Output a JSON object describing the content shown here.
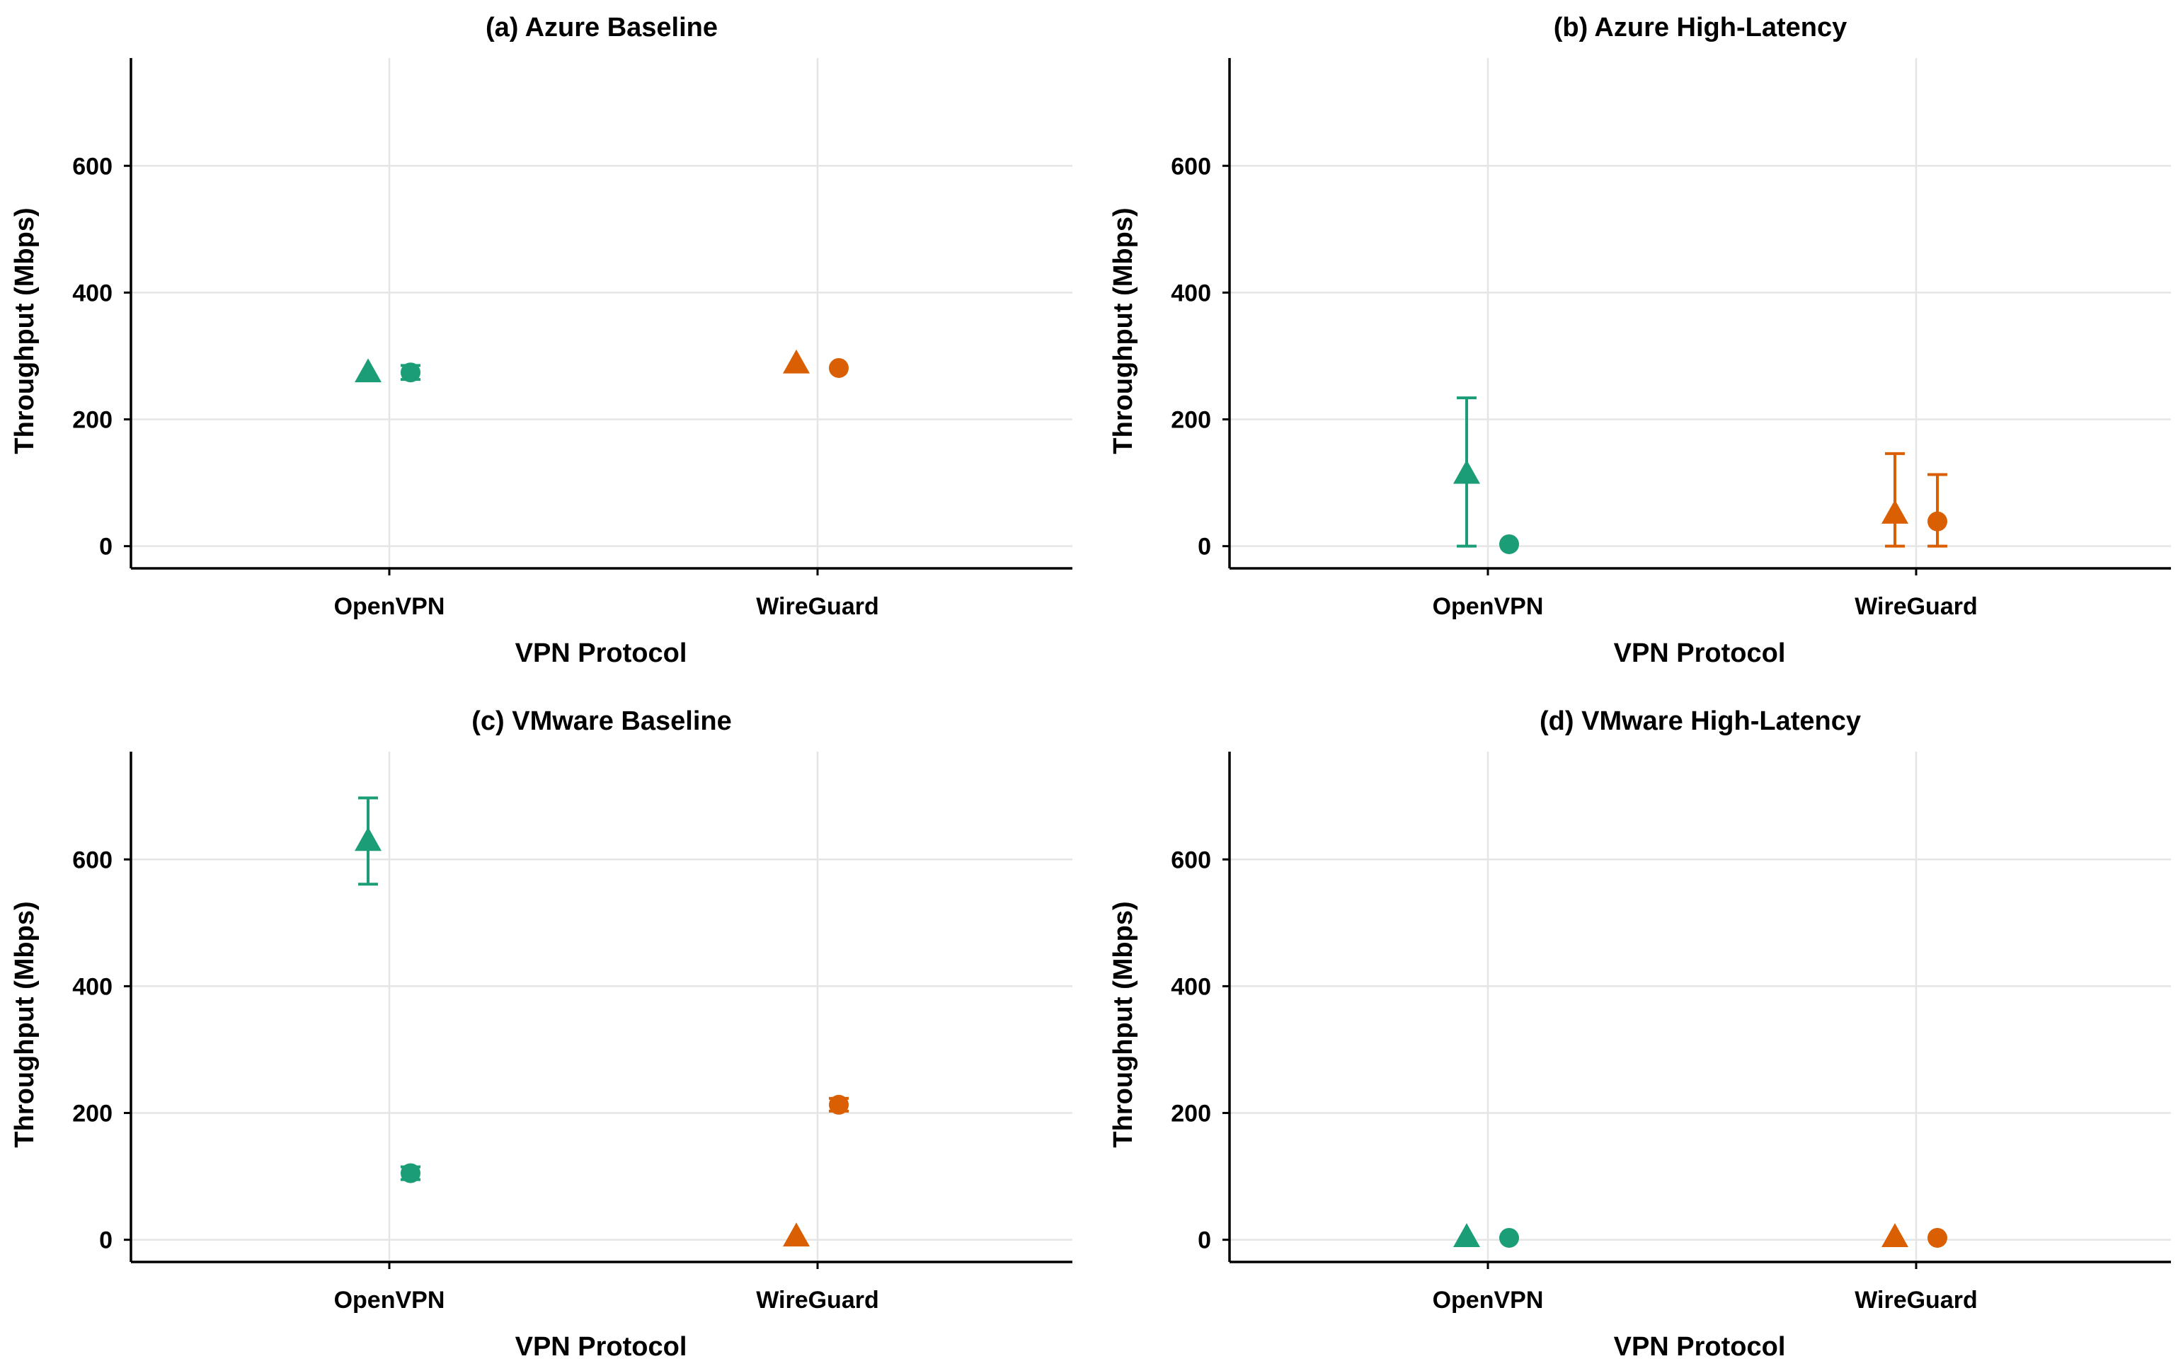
{
  "colors": {
    "openvpn": "#1b9e77",
    "wireguard": "#d95f02",
    "grid": "#e5e5e5",
    "axis": "#000000"
  },
  "chart_data": [
    {
      "type": "scatter",
      "title": "(a) Azure Baseline",
      "xlabel": "VPN Protocol",
      "ylabel": "Throughput (Mbps)",
      "categories": [
        "OpenVPN",
        "WireGuard"
      ],
      "yticks": [
        "0",
        "200",
        "400",
        "600"
      ],
      "ylim": [
        -35,
        770
      ],
      "series": [
        {
          "name": "OpenVPN triangle",
          "protocol": "OpenVPN",
          "marker": "triangle",
          "offset": -1,
          "value": 275,
          "error_low": 275,
          "error_high": 275,
          "errorbar": false
        },
        {
          "name": "OpenVPN circle",
          "protocol": "OpenVPN",
          "marker": "circle",
          "offset": 1,
          "value": 274,
          "error_low": 263,
          "error_high": 285,
          "errorbar": true
        },
        {
          "name": "WireGuard triangle",
          "protocol": "WireGuard",
          "marker": "triangle",
          "offset": -1,
          "value": 289,
          "error_low": 289,
          "error_high": 289,
          "errorbar": false
        },
        {
          "name": "WireGuard circle",
          "protocol": "WireGuard",
          "marker": "circle",
          "offset": 1,
          "value": 281,
          "error_low": 281,
          "error_high": 281,
          "errorbar": false
        }
      ]
    },
    {
      "type": "scatter",
      "title": "(b) Azure High-Latency",
      "xlabel": "VPN Protocol",
      "ylabel": "Throughput (Mbps)",
      "categories": [
        "OpenVPN",
        "WireGuard"
      ],
      "yticks": [
        "0",
        "200",
        "400",
        "600"
      ],
      "ylim": [
        -35,
        770
      ],
      "series": [
        {
          "name": "OpenVPN triangle",
          "protocol": "OpenVPN",
          "marker": "triangle",
          "offset": -1,
          "value": 115,
          "error_low": 0,
          "error_high": 234,
          "errorbar": true
        },
        {
          "name": "OpenVPN circle",
          "protocol": "OpenVPN",
          "marker": "circle",
          "offset": 1,
          "value": 3,
          "error_low": 3,
          "error_high": 3,
          "errorbar": false
        },
        {
          "name": "WireGuard triangle",
          "protocol": "WireGuard",
          "marker": "triangle",
          "offset": -1,
          "value": 52,
          "error_low": 0,
          "error_high": 146,
          "errorbar": true
        },
        {
          "name": "WireGuard circle",
          "protocol": "WireGuard",
          "marker": "circle",
          "offset": 1,
          "value": 39,
          "error_low": 0,
          "error_high": 113,
          "errorbar": true
        }
      ]
    },
    {
      "type": "scatter",
      "title": "(c) VMware Baseline",
      "xlabel": "VPN Protocol",
      "ylabel": "Throughput (Mbps)",
      "categories": [
        "OpenVPN",
        "WireGuard"
      ],
      "yticks": [
        "0",
        "200",
        "400",
        "600"
      ],
      "ylim": [
        -35,
        770
      ],
      "series": [
        {
          "name": "OpenVPN triangle",
          "protocol": "OpenVPN",
          "marker": "triangle",
          "offset": -1,
          "value": 630,
          "error_low": 561,
          "error_high": 697,
          "errorbar": true
        },
        {
          "name": "OpenVPN circle",
          "protocol": "OpenVPN",
          "marker": "circle",
          "offset": 1,
          "value": 105,
          "error_low": 95,
          "error_high": 115,
          "errorbar": true
        },
        {
          "name": "WireGuard triangle",
          "protocol": "WireGuard",
          "marker": "triangle",
          "offset": -1,
          "value": 6,
          "error_low": 6,
          "error_high": 6,
          "errorbar": false
        },
        {
          "name": "WireGuard circle",
          "protocol": "WireGuard",
          "marker": "circle",
          "offset": 1,
          "value": 213,
          "error_low": 203,
          "error_high": 223,
          "errorbar": true
        }
      ]
    },
    {
      "type": "scatter",
      "title": "(d) VMware High-Latency",
      "xlabel": "VPN Protocol",
      "ylabel": "Throughput (Mbps)",
      "categories": [
        "OpenVPN",
        "WireGuard"
      ],
      "yticks": [
        "0",
        "200",
        "400",
        "600"
      ],
      "ylim": [
        -35,
        770
      ],
      "series": [
        {
          "name": "OpenVPN triangle",
          "protocol": "OpenVPN",
          "marker": "triangle",
          "offset": -1,
          "value": 5,
          "error_low": 5,
          "error_high": 5,
          "errorbar": false
        },
        {
          "name": "OpenVPN circle",
          "protocol": "OpenVPN",
          "marker": "circle",
          "offset": 1,
          "value": 3,
          "error_low": 3,
          "error_high": 3,
          "errorbar": false
        },
        {
          "name": "WireGuard triangle",
          "protocol": "WireGuard",
          "marker": "triangle",
          "offset": -1,
          "value": 5,
          "error_low": 5,
          "error_high": 5,
          "errorbar": false
        },
        {
          "name": "WireGuard circle",
          "protocol": "WireGuard",
          "marker": "circle",
          "offset": 1,
          "value": 3,
          "error_low": 3,
          "error_high": 3,
          "errorbar": false
        }
      ]
    }
  ]
}
